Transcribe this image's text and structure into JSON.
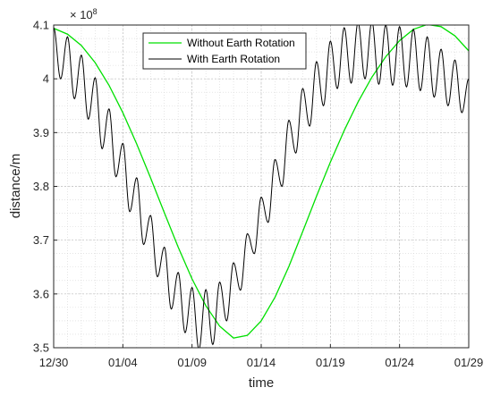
{
  "chart_data": {
    "type": "line",
    "xlabel": "time",
    "ylabel": "distance/m",
    "y_exponent_label": "× 10",
    "y_exponent_power": "8",
    "x_range_days": [
      0,
      30
    ],
    "x_ticks": [
      {
        "day": 0,
        "label": "12/30"
      },
      {
        "day": 5,
        "label": "01/04"
      },
      {
        "day": 10,
        "label": "01/09"
      },
      {
        "day": 15,
        "label": "01/14"
      },
      {
        "day": 20,
        "label": "01/19"
      },
      {
        "day": 25,
        "label": "01/24"
      },
      {
        "day": 30,
        "label": "01/29"
      }
    ],
    "ylim": [
      3.5,
      4.1
    ],
    "y_ticks": [
      {
        "value": 3.5,
        "label": "3.5"
      },
      {
        "value": 3.6,
        "label": "3.6"
      },
      {
        "value": 3.7,
        "label": "3.7"
      },
      {
        "value": 3.8,
        "label": "3.8"
      },
      {
        "value": 3.9,
        "label": "3.9"
      },
      {
        "value": 4.0,
        "label": "4"
      },
      {
        "value": 4.1,
        "label": "4.1"
      }
    ],
    "grid": "on",
    "minor_grid": "on",
    "legend_position": "top-center",
    "series": [
      {
        "name": "Without Earth Rotation",
        "color": "#00e000",
        "x": [
          0,
          1,
          2,
          3,
          4,
          5,
          6,
          7,
          8,
          9,
          10,
          11,
          12,
          13,
          14,
          15,
          16,
          17,
          18,
          19,
          20,
          21,
          22,
          23,
          24,
          25,
          26,
          27,
          28,
          29,
          30
        ],
        "y": [
          4.094,
          4.083,
          4.062,
          4.03,
          3.988,
          3.937,
          3.879,
          3.816,
          3.751,
          3.687,
          3.628,
          3.578,
          3.54,
          3.518,
          3.523,
          3.55,
          3.594,
          3.651,
          3.716,
          3.782,
          3.845,
          3.904,
          3.957,
          4.003,
          4.041,
          4.071,
          4.092,
          4.101,
          4.097,
          4.08,
          4.052
        ]
      },
      {
        "name": "With Earth Rotation",
        "color": "#000000",
        "peaks": [
          {
            "x": 0.0,
            "y": 4.095
          },
          {
            "x": 1.0,
            "y": 4.078
          },
          {
            "x": 2.0,
            "y": 4.044
          },
          {
            "x": 3.0,
            "y": 4.002
          },
          {
            "x": 4.0,
            "y": 3.944
          },
          {
            "x": 5.0,
            "y": 3.88
          },
          {
            "x": 6.0,
            "y": 3.816
          },
          {
            "x": 7.0,
            "y": 3.746
          },
          {
            "x": 8.0,
            "y": 3.687
          },
          {
            "x": 9.0,
            "y": 3.64
          },
          {
            "x": 10.0,
            "y": 3.612
          },
          {
            "x": 11.0,
            "y": 3.608
          },
          {
            "x": 12.0,
            "y": 3.622
          },
          {
            "x": 13.0,
            "y": 3.658
          },
          {
            "x": 14.0,
            "y": 3.712
          },
          {
            "x": 15.0,
            "y": 3.78
          },
          {
            "x": 16.0,
            "y": 3.85
          },
          {
            "x": 17.0,
            "y": 3.923
          },
          {
            "x": 18.0,
            "y": 3.982
          },
          {
            "x": 19.0,
            "y": 4.032
          },
          {
            "x": 20.0,
            "y": 4.07
          },
          {
            "x": 21.0,
            "y": 4.095
          },
          {
            "x": 22.0,
            "y": 4.105
          },
          {
            "x": 23.0,
            "y": 4.107
          },
          {
            "x": 24.0,
            "y": 4.1
          },
          {
            "x": 25.0,
            "y": 4.097
          },
          {
            "x": 26.0,
            "y": 4.092
          },
          {
            "x": 27.0,
            "y": 4.078
          },
          {
            "x": 28.0,
            "y": 4.055
          },
          {
            "x": 29.0,
            "y": 4.035
          },
          {
            "x": 30.0,
            "y": 4.0
          }
        ],
        "troughs": [
          {
            "x": 0.5,
            "y": 4.0
          },
          {
            "x": 1.5,
            "y": 3.963
          },
          {
            "x": 2.5,
            "y": 3.925
          },
          {
            "x": 3.5,
            "y": 3.87
          },
          {
            "x": 4.5,
            "y": 3.818
          },
          {
            "x": 5.5,
            "y": 3.753
          },
          {
            "x": 6.5,
            "y": 3.692
          },
          {
            "x": 7.5,
            "y": 3.632
          },
          {
            "x": 8.5,
            "y": 3.572
          },
          {
            "x": 9.5,
            "y": 3.528
          },
          {
            "x": 10.5,
            "y": 3.497
          },
          {
            "x": 11.5,
            "y": 3.506
          },
          {
            "x": 12.5,
            "y": 3.55
          },
          {
            "x": 13.5,
            "y": 3.607
          },
          {
            "x": 14.5,
            "y": 3.675
          },
          {
            "x": 15.5,
            "y": 3.733
          },
          {
            "x": 16.5,
            "y": 3.8
          },
          {
            "x": 17.5,
            "y": 3.862
          },
          {
            "x": 18.5,
            "y": 3.912
          },
          {
            "x": 19.5,
            "y": 3.95
          },
          {
            "x": 20.5,
            "y": 3.982
          },
          {
            "x": 21.5,
            "y": 3.992
          },
          {
            "x": 22.5,
            "y": 4.0
          },
          {
            "x": 23.5,
            "y": 3.99
          },
          {
            "x": 24.5,
            "y": 3.988
          },
          {
            "x": 25.5,
            "y": 3.985
          },
          {
            "x": 26.5,
            "y": 3.978
          },
          {
            "x": 27.5,
            "y": 3.966
          },
          {
            "x": 28.5,
            "y": 3.95
          },
          {
            "x": 29.5,
            "y": 3.937
          }
        ]
      }
    ]
  }
}
